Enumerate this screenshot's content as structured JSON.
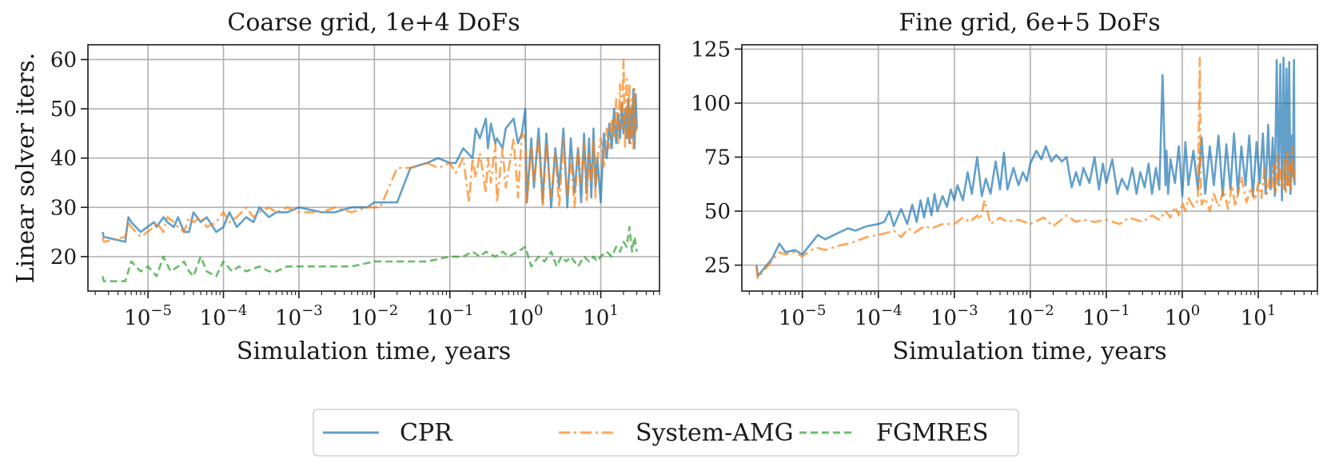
{
  "legend": {
    "entries": [
      {
        "label": "CPR",
        "color": "#1f77b4",
        "dash": "solid"
      },
      {
        "label": "System-AMG",
        "color": "#ff7f0e",
        "dash": "dashdot"
      },
      {
        "label": "FGMRES",
        "color": "#2ca02c",
        "dash": "dashed"
      }
    ]
  },
  "chart_data": [
    {
      "type": "line",
      "title": "Coarse grid, 1e+4 DoFs",
      "xlabel": "Simulation time, years",
      "ylabel": "Linear solver iters.",
      "xscale": "log",
      "xlim": [
        1.6e-06,
        60
      ],
      "ylim": [
        13,
        63
      ],
      "xticks": [
        {
          "value": 1e-05,
          "base": "10",
          "exp": "−5"
        },
        {
          "value": 0.0001,
          "base": "10",
          "exp": "−4"
        },
        {
          "value": 0.001,
          "base": "10",
          "exp": "−3"
        },
        {
          "value": 0.01,
          "base": "10",
          "exp": "−2"
        },
        {
          "value": 0.1,
          "base": "10",
          "exp": "−1"
        },
        {
          "value": 1,
          "base": "10",
          "exp": "0"
        },
        {
          "value": 10,
          "base": "10",
          "exp": "1"
        }
      ],
      "yticks": [
        20,
        30,
        40,
        50,
        60
      ],
      "grid": true,
      "series": [
        {
          "name": "CPR",
          "x": [
            2.5e-06,
            2.6e-06,
            5e-06,
            5.5e-06,
            6e-06,
            8e-06,
            1.2e-05,
            1.3e-05,
            1.6e-05,
            1.8e-05,
            2.2e-05,
            2.5e-05,
            3e-05,
            3.5e-05,
            4e-05,
            5e-05,
            6e-05,
            8e-05,
            0.0001,
            0.00012,
            0.00015,
            0.0002,
            0.00025,
            0.0003,
            0.0004,
            0.0005,
            0.0007,
            0.001,
            0.002,
            0.003,
            0.005,
            0.008,
            0.01,
            0.012,
            0.02,
            0.03,
            0.05,
            0.07,
            0.1,
            0.12,
            0.15,
            0.2,
            0.22,
            0.25,
            0.3,
            0.32,
            0.35,
            0.4,
            0.42,
            0.5,
            0.55,
            0.7,
            0.8,
            0.9,
            1.0,
            1.05,
            1.2,
            1.3,
            1.5,
            1.7,
            1.9,
            2.2,
            2.5,
            2.8,
            3.2,
            3.6,
            4.0,
            4.5,
            5.0,
            5.5,
            6.0,
            6.5,
            7.0,
            7.5,
            8.0,
            8.5,
            9.0,
            10,
            11,
            12,
            13,
            14,
            15,
            16,
            17,
            18,
            19,
            20,
            21,
            22,
            23,
            24,
            25,
            26,
            27,
            28,
            29,
            30
          ],
          "y": [
            25,
            24,
            23,
            28,
            27,
            25,
            27,
            26,
            28,
            27,
            26,
            28,
            25,
            25,
            29,
            27,
            28,
            25,
            26,
            29,
            26,
            28,
            27,
            30,
            28,
            29,
            29,
            30,
            29,
            29,
            30,
            30,
            31,
            31,
            31,
            38,
            39,
            40,
            39,
            39,
            42,
            40,
            46,
            44,
            48,
            42,
            47,
            43,
            44,
            42,
            46,
            48,
            43,
            45,
            50,
            31,
            44,
            34,
            46,
            31,
            45,
            30,
            42,
            34,
            46,
            30,
            44,
            33,
            42,
            31,
            45,
            33,
            44,
            32,
            46,
            34,
            40,
            31,
            45,
            40,
            47,
            42,
            50,
            43,
            49,
            44,
            51,
            45,
            50,
            44,
            52,
            43,
            50,
            44,
            54,
            42,
            53,
            46
          ],
          "color": "#1f77b4",
          "dash": "solid"
        },
        {
          "name": "System-AMG",
          "x": [
            2.5e-06,
            2.6e-06,
            5e-06,
            5.5e-06,
            6e-06,
            8e-06,
            1.2e-05,
            1.3e-05,
            1.6e-05,
            1.8e-05,
            2.2e-05,
            2.5e-05,
            3e-05,
            3.5e-05,
            4e-05,
            5e-05,
            6e-05,
            8e-05,
            0.0001,
            0.00012,
            0.00015,
            0.0002,
            0.00025,
            0.0003,
            0.0004,
            0.0005,
            0.0007,
            0.001,
            0.002,
            0.003,
            0.005,
            0.008,
            0.01,
            0.012,
            0.02,
            0.03,
            0.05,
            0.07,
            0.1,
            0.12,
            0.15,
            0.18,
            0.2,
            0.22,
            0.25,
            0.3,
            0.32,
            0.35,
            0.4,
            0.42,
            0.5,
            0.55,
            0.7,
            0.8,
            0.9,
            1.0,
            1.05,
            1.2,
            1.3,
            1.5,
            1.7,
            1.9,
            2.2,
            2.5,
            2.8,
            3.2,
            3.6,
            4.0,
            4.5,
            5.0,
            5.5,
            6.0,
            6.5,
            7.0,
            7.5,
            8.0,
            8.5,
            9.0,
            10,
            11,
            12,
            13,
            14,
            15,
            16,
            17,
            18,
            19,
            20,
            21,
            22,
            23,
            24,
            25,
            26,
            27,
            28,
            29,
            30
          ],
          "y": [
            24,
            23,
            24,
            27,
            26,
            24,
            26,
            27,
            25,
            28,
            27,
            26,
            25,
            28,
            27,
            28,
            26,
            27,
            29,
            27,
            28,
            30,
            28,
            29,
            30,
            29,
            30,
            29,
            29,
            30,
            29,
            30,
            30,
            30,
            38,
            38,
            39,
            38,
            39,
            37,
            40,
            31,
            40,
            36,
            41,
            33,
            40,
            35,
            43,
            31,
            42,
            34,
            44,
            32,
            45,
            44,
            31,
            42,
            35,
            44,
            30,
            43,
            32,
            41,
            30,
            44,
            32,
            40,
            30,
            42,
            35,
            43,
            31,
            41,
            35,
            44,
            32,
            40,
            44,
            38,
            46,
            42,
            48,
            44,
            52,
            43,
            55,
            46,
            60,
            42,
            56,
            44,
            55,
            43,
            52,
            42,
            54,
            45,
            46
          ],
          "color": "#ff7f0e",
          "dash": "dashdot"
        },
        {
          "name": "FGMRES",
          "x": [
            2.5e-06,
            2.6e-06,
            3e-06,
            5e-06,
            6e-06,
            8e-06,
            1e-05,
            1.3e-05,
            1.6e-05,
            2e-05,
            2.5e-05,
            3e-05,
            3.5e-05,
            4e-05,
            5e-05,
            6e-05,
            8e-05,
            0.0001,
            0.00013,
            0.00016,
            0.0002,
            0.0003,
            0.0004,
            0.0005,
            0.0007,
            0.001,
            0.002,
            0.005,
            0.01,
            0.02,
            0.05,
            0.1,
            0.15,
            0.2,
            0.25,
            0.3,
            0.4,
            0.5,
            0.6,
            0.8,
            1.0,
            1.2,
            1.5,
            1.8,
            2.2,
            2.6,
            3.0,
            3.5,
            4.0,
            5.0,
            6.0,
            7.0,
            8.0,
            9.0,
            10,
            12,
            14,
            16,
            18,
            20,
            22,
            24,
            26,
            28,
            30
          ],
          "y": [
            16,
            15,
            15,
            15,
            19,
            17,
            18,
            16,
            20,
            17,
            18,
            19,
            17,
            16,
            20,
            17,
            16,
            19,
            17,
            18,
            17,
            18,
            17,
            17,
            18,
            18,
            18,
            18,
            19,
            19,
            19,
            20,
            20,
            21,
            20,
            21,
            20,
            21,
            20,
            21,
            22,
            18,
            20,
            19,
            21,
            18,
            20,
            19,
            20,
            18,
            20,
            19,
            20,
            19,
            20,
            21,
            20,
            22,
            21,
            23,
            22,
            26,
            21,
            24,
            21
          ],
          "color": "#2ca02c",
          "dash": "dashed"
        }
      ]
    },
    {
      "type": "line",
      "title": "Fine grid, 6e+5 DoFs",
      "xlabel": "Simulation time, years",
      "ylabel": "",
      "xscale": "log",
      "xlim": [
        1.6e-06,
        60
      ],
      "ylim": [
        13,
        127
      ],
      "xticks": [
        {
          "value": 1e-05,
          "base": "10",
          "exp": "−5"
        },
        {
          "value": 0.0001,
          "base": "10",
          "exp": "−4"
        },
        {
          "value": 0.001,
          "base": "10",
          "exp": "−3"
        },
        {
          "value": 0.01,
          "base": "10",
          "exp": "−2"
        },
        {
          "value": 0.1,
          "base": "10",
          "exp": "−1"
        },
        {
          "value": 1,
          "base": "10",
          "exp": "0"
        },
        {
          "value": 10,
          "base": "10",
          "exp": "1"
        }
      ],
      "yticks": [
        25,
        50,
        75,
        100,
        125
      ],
      "grid": true,
      "series": [
        {
          "name": "CPR",
          "x": [
            2.5e-06,
            2.6e-06,
            4e-06,
            5e-06,
            6e-06,
            8e-06,
            1e-05,
            1.3e-05,
            1.6e-05,
            2e-05,
            3e-05,
            4e-05,
            5e-05,
            7e-05,
            0.0001,
            0.00012,
            0.00014,
            0.00016,
            0.0002,
            0.00024,
            0.00028,
            0.00032,
            0.00036,
            0.0004,
            0.00045,
            0.0005,
            0.00055,
            0.0006,
            0.0007,
            0.0008,
            0.0009,
            0.001,
            0.0011,
            0.0013,
            0.0015,
            0.0017,
            0.002,
            0.0023,
            0.0026,
            0.003,
            0.0035,
            0.004,
            0.0045,
            0.005,
            0.006,
            0.007,
            0.008,
            0.009,
            0.01,
            0.012,
            0.014,
            0.016,
            0.019,
            0.022,
            0.026,
            0.03,
            0.035,
            0.04,
            0.045,
            0.05,
            0.06,
            0.07,
            0.08,
            0.09,
            0.1,
            0.12,
            0.14,
            0.16,
            0.19,
            0.22,
            0.25,
            0.28,
            0.32,
            0.36,
            0.4,
            0.45,
            0.5,
            0.55,
            0.6,
            0.62,
            0.65,
            0.7,
            0.8,
            0.9,
            1.0,
            1.1,
            1.2,
            1.4,
            1.6,
            1.8,
            2.0,
            2.3,
            2.6,
            3.0,
            3.4,
            3.8,
            4.3,
            4.8,
            5.4,
            6.0,
            6.8,
            7.6,
            8.5,
            9.5,
            10.5,
            11.5,
            12.5,
            13.5,
            14.5,
            15.5,
            16.5,
            17.5,
            18.5,
            19.5,
            20.5,
            21.5,
            22.5,
            23.5,
            24.5,
            25.5,
            26.5,
            27.5,
            28.5,
            29.5,
            30
          ],
          "y": [
            25,
            20,
            28,
            35,
            31,
            32,
            30,
            35,
            39,
            37,
            40,
            42,
            41,
            43,
            44,
            45,
            50,
            43,
            51,
            44,
            53,
            45,
            55,
            47,
            56,
            48,
            58,
            50,
            57,
            52,
            60,
            55,
            62,
            55,
            68,
            58,
            75,
            57,
            65,
            58,
            73,
            60,
            77,
            60,
            70,
            62,
            68,
            64,
            72,
            78,
            74,
            80,
            73,
            76,
            73,
            75,
            61,
            68,
            62,
            70,
            63,
            75,
            60,
            72,
            63,
            74,
            58,
            65,
            60,
            70,
            58,
            68,
            61,
            72,
            58,
            70,
            60,
            113,
            62,
            78,
            58,
            74,
            63,
            80,
            57,
            82,
            62,
            78,
            60,
            84,
            58,
            80,
            62,
            85,
            57,
            81,
            60,
            86,
            58,
            80,
            62,
            85,
            57,
            82,
            63,
            86,
            58,
            90,
            60,
            84,
            57,
            120,
            62,
            118,
            55,
            121,
            60,
            116,
            62,
            119,
            58,
            85,
            66,
            120,
            62
          ],
          "color": "#1f77b4",
          "dash": "solid"
        },
        {
          "name": "System-AMG",
          "x": [
            2.5e-06,
            2.6e-06,
            4e-06,
            5e-06,
            6e-06,
            8e-06,
            1e-05,
            1.3e-05,
            1.6e-05,
            2e-05,
            3e-05,
            4e-05,
            5e-05,
            7e-05,
            0.0001,
            0.00013,
            0.00016,
            0.0002,
            0.00025,
            0.0003,
            0.0004,
            0.0005,
            0.0007,
            0.001,
            0.0013,
            0.0016,
            0.002,
            0.0022,
            0.0025,
            0.003,
            0.004,
            0.005,
            0.007,
            0.01,
            0.015,
            0.02,
            0.03,
            0.04,
            0.05,
            0.07,
            0.1,
            0.15,
            0.2,
            0.3,
            0.4,
            0.5,
            0.6,
            0.7,
            0.8,
            0.9,
            1.0,
            1.1,
            1.2,
            1.4,
            1.6,
            1.7,
            1.75,
            1.8,
            2.0,
            2.3,
            2.6,
            3.0,
            3.5,
            4.0,
            4.5,
            5.0,
            6.0,
            7.0,
            8.0,
            9.0,
            10,
            11,
            12,
            13,
            14,
            15,
            16,
            17,
            18,
            19,
            20,
            21,
            22,
            23,
            24,
            25,
            26,
            27,
            28,
            29,
            30
          ],
          "y": [
            24,
            19,
            27,
            31,
            30,
            31,
            29,
            32,
            33,
            32,
            34,
            35,
            36,
            38,
            39,
            40,
            41,
            38,
            42,
            40,
            43,
            42,
            44,
            44,
            47,
            45,
            48,
            46,
            55,
            44,
            47,
            45,
            46,
            44,
            47,
            43,
            48,
            45,
            46,
            45,
            46,
            44,
            47,
            45,
            48,
            46,
            50,
            47,
            52,
            48,
            54,
            50,
            56,
            52,
            55,
            121,
            60,
            53,
            56,
            50,
            58,
            52,
            60,
            51,
            62,
            52,
            66,
            54,
            61,
            55,
            63,
            56,
            70,
            58,
            65,
            60,
            72,
            58,
            76,
            62,
            70,
            60,
            74,
            58,
            78,
            62,
            72,
            60,
            80,
            64,
            70
          ],
          "color": "#ff7f0e",
          "dash": "dashdot"
        }
      ]
    }
  ]
}
